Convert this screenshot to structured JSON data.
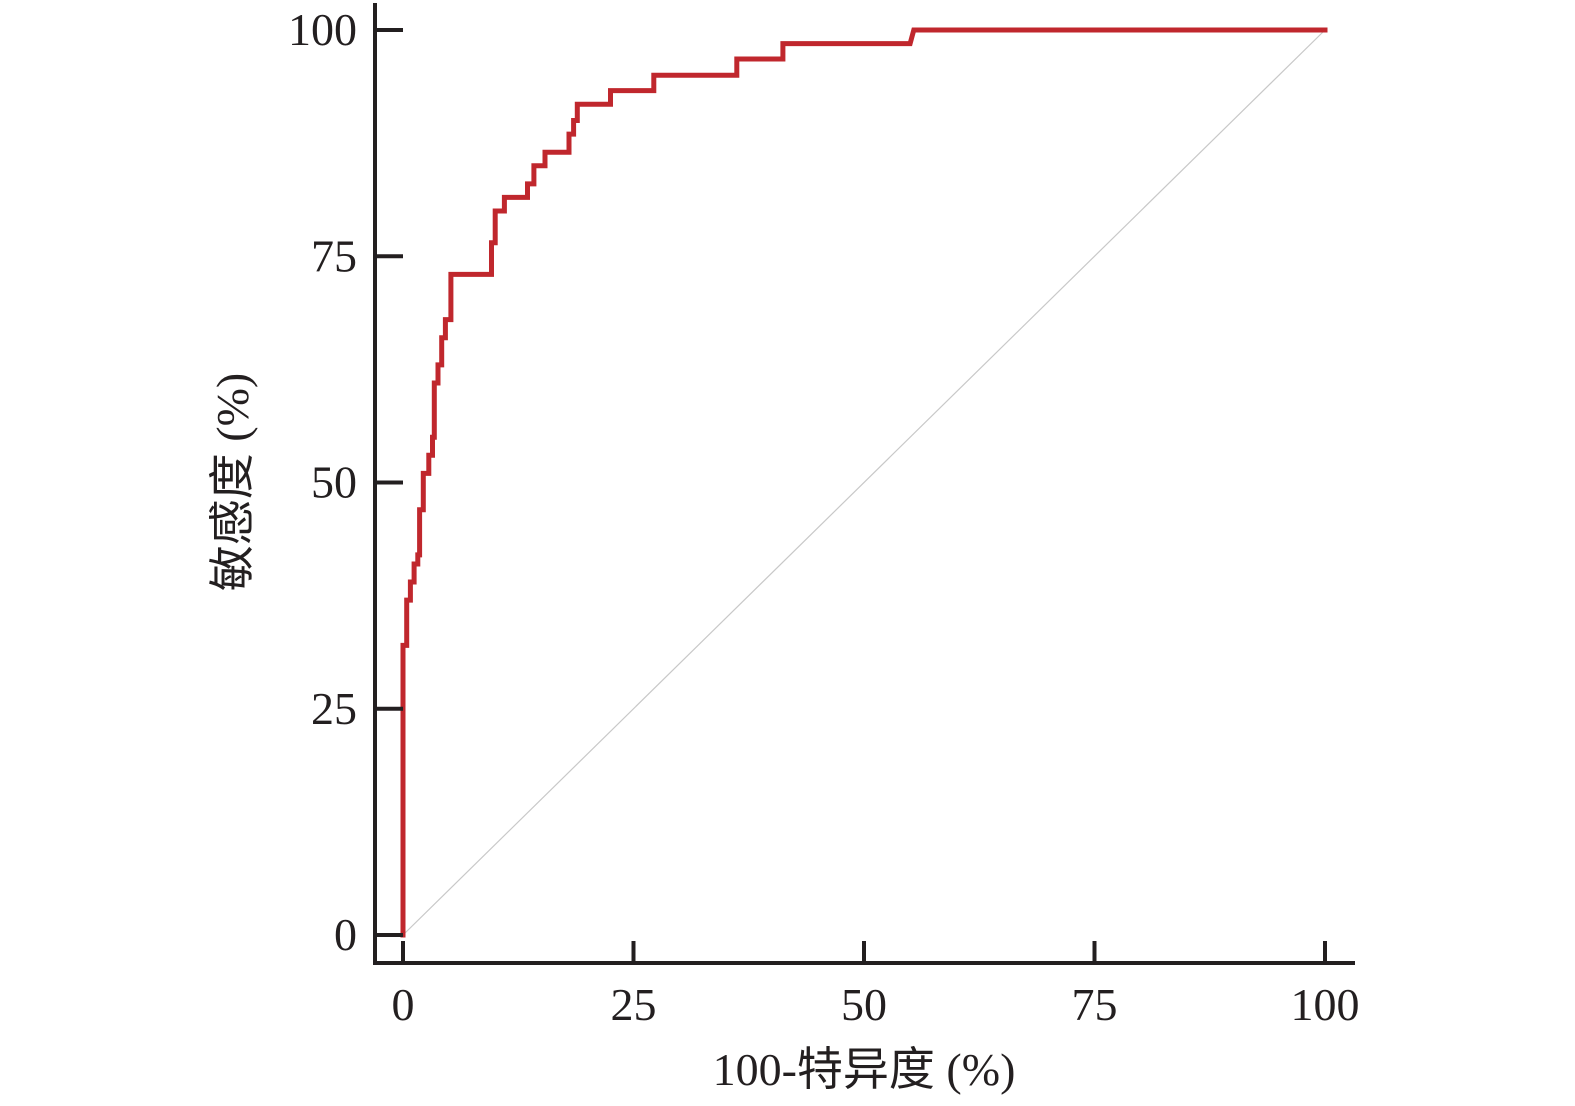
{
  "chart_data": {
    "type": "line",
    "title": "",
    "xlabel": "100-特异度 (%)",
    "ylabel": "敏感度 (%)",
    "xlim": [
      0,
      100
    ],
    "ylim": [
      0,
      100
    ],
    "x_ticks": [
      0,
      25,
      50,
      75,
      100
    ],
    "y_ticks": [
      0,
      25,
      50,
      75,
      100
    ],
    "x_tick_labels": [
      "0",
      "25",
      "50",
      "75",
      "100"
    ],
    "y_tick_labels": [
      "0",
      "25",
      "50",
      "75",
      "100"
    ],
    "grid": false,
    "legend": "none",
    "series": [
      {
        "color": "#c0272d",
        "style": "step",
        "points": [
          [
            0,
            0
          ],
          [
            0,
            32
          ],
          [
            0.4,
            32
          ],
          [
            0.4,
            37
          ],
          [
            0.8,
            37
          ],
          [
            0.8,
            39
          ],
          [
            1.2,
            39
          ],
          [
            1.2,
            41
          ],
          [
            1.6,
            41
          ],
          [
            1.6,
            42
          ],
          [
            1.8,
            42
          ],
          [
            1.8,
            47
          ],
          [
            2.2,
            47
          ],
          [
            2.2,
            51
          ],
          [
            2.8,
            51
          ],
          [
            2.8,
            53
          ],
          [
            3.2,
            53
          ],
          [
            3.2,
            55
          ],
          [
            3.4,
            55
          ],
          [
            3.4,
            61
          ],
          [
            3.8,
            61
          ],
          [
            3.8,
            63
          ],
          [
            4.2,
            63
          ],
          [
            4.2,
            66
          ],
          [
            4.6,
            66
          ],
          [
            4.6,
            68
          ],
          [
            5.2,
            68
          ],
          [
            5.2,
            73
          ],
          [
            9.6,
            73
          ],
          [
            9.6,
            76.5
          ],
          [
            10,
            76.5
          ],
          [
            10,
            80
          ],
          [
            11,
            80
          ],
          [
            11,
            81.5
          ],
          [
            13.5,
            81.5
          ],
          [
            13.5,
            83
          ],
          [
            14.2,
            83
          ],
          [
            14.2,
            85
          ],
          [
            15.4,
            85
          ],
          [
            15.4,
            86.5
          ],
          [
            18,
            86.5
          ],
          [
            18,
            88.5
          ],
          [
            18.5,
            88.5
          ],
          [
            18.5,
            90
          ],
          [
            18.9,
            90
          ],
          [
            18.9,
            91.8
          ],
          [
            22.5,
            91.8
          ],
          [
            22.5,
            93.3
          ],
          [
            27.2,
            93.3
          ],
          [
            27.2,
            95
          ],
          [
            36.2,
            95
          ],
          [
            36.2,
            96.8
          ],
          [
            41.2,
            96.8
          ],
          [
            41.2,
            98.5
          ],
          [
            55,
            98.5
          ],
          [
            55.4,
            100
          ],
          [
            100,
            100
          ]
        ]
      },
      {
        "color": "#c8c8c8",
        "style": "reference",
        "points": [
          [
            0,
            0
          ],
          [
            100,
            100
          ]
        ]
      }
    ]
  }
}
